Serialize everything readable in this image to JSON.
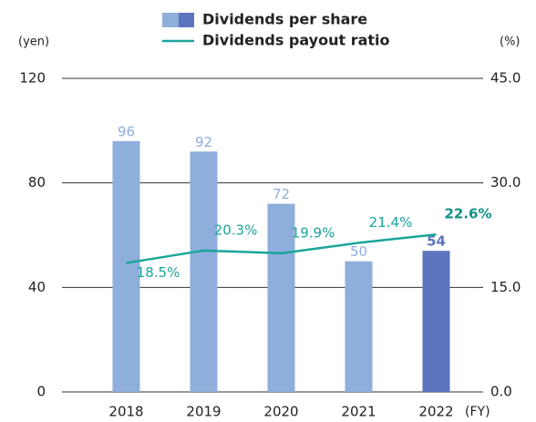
{
  "chart_data": {
    "type": "bar-line",
    "y_label": "(yen)",
    "y2_label": "(%)",
    "x_label": "(FY)",
    "categories": [
      "2018",
      "2019",
      "2020",
      "2021",
      "2022"
    ],
    "series": [
      {
        "name": "Dividends per share",
        "type": "bar",
        "color": "#8eaedc",
        "colors": [
          "#8eaedc",
          "#8eaedc",
          "#8eaedc",
          "#8eaedc",
          "#5b75bf"
        ],
        "values": [
          96,
          92,
          72,
          50,
          54
        ]
      },
      {
        "name": "Dividends payout ratio",
        "type": "line",
        "axis": "y2",
        "color": "#1aa59a",
        "values": [
          18.5,
          20.3,
          19.9,
          21.4,
          22.6
        ],
        "value_labels": [
          "18.5%",
          "20.3%",
          "19.9%",
          "21.4%",
          "22.6%"
        ]
      }
    ],
    "ylim": [
      0,
      120
    ],
    "yticks": [
      0,
      40,
      80,
      120
    ],
    "y2lim": [
      0,
      45
    ],
    "y2ticks": [
      {
        "value": 0,
        "label": "0.0"
      },
      {
        "value": 15,
        "label": "15.0"
      },
      {
        "value": 30,
        "label": "30.0"
      },
      {
        "value": 45,
        "label": "45.0"
      }
    ],
    "grid": true
  }
}
